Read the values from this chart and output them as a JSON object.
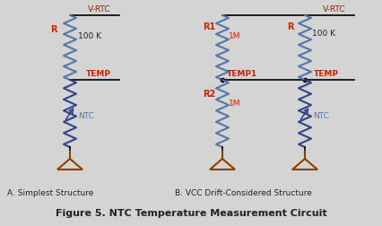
{
  "bg_color": "#d4d4d4",
  "title": "Figure 5. NTC Temperature Measurement Circuit",
  "label_a": "A. Simplest Structure",
  "label_b": "B. VCC Drift-Considered Structure",
  "vrtc_color": "#8B2500",
  "wire_color": "#5577AA",
  "wire_color_dark": "#334488",
  "label_red": "#CC2200",
  "label_black": "#222222",
  "label_blue": "#5577AA",
  "ground_color": "#8B4000",
  "node_black": "#000000"
}
